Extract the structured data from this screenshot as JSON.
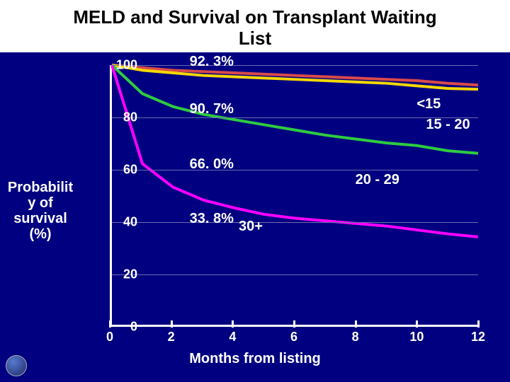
{
  "title_line1": "MELD and Survival on Transplant Waiting",
  "title_line2": "List",
  "ylabel_l1": "Probabilit",
  "ylabel_l2": "y of",
  "ylabel_l3": "survival",
  "ylabel_l4": "(%)",
  "xlabel": "Months from listing",
  "chart": {
    "type": "line",
    "background_color": "#000080",
    "grid_color": "#6a6ab0",
    "axis_color": "#ffffff",
    "text_color": "#ffffff",
    "title_bg": "#ffffff",
    "title_color": "#000000",
    "title_fontsize": 26,
    "label_fontsize": 20,
    "tick_fontsize": 18,
    "line_width": 4,
    "xlim": [
      0,
      12
    ],
    "ylim": [
      0,
      100
    ],
    "xticks": [
      0,
      2,
      4,
      6,
      8,
      10,
      12
    ],
    "yticks": [
      0,
      20,
      40,
      60,
      80,
      100
    ],
    "series": [
      {
        "name": "<15",
        "color": "#d94a4a",
        "x": [
          0,
          1,
          2,
          3,
          4,
          5,
          6,
          7,
          8,
          9,
          10,
          11,
          12
        ],
        "y": [
          100,
          99,
          98,
          97.5,
          97,
          96.5,
          96,
          95.5,
          95,
          94.5,
          94,
          93,
          92.3
        ],
        "end_label": "92. 3%"
      },
      {
        "name": "15 - 20",
        "color": "#f6d800",
        "x": [
          0,
          1,
          2,
          3,
          4,
          5,
          6,
          7,
          8,
          9,
          10,
          11,
          12
        ],
        "y": [
          100,
          98,
          97,
          96,
          95.5,
          95,
          94.5,
          94,
          93.5,
          93,
          92,
          91,
          90.7
        ],
        "end_label": "90. 7%"
      },
      {
        "name": "20 - 29",
        "color": "#2ecc40",
        "x": [
          0,
          1,
          2,
          3,
          4,
          5,
          6,
          7,
          8,
          9,
          10,
          11,
          12
        ],
        "y": [
          100,
          89,
          84,
          81,
          79,
          77,
          75,
          73,
          71.5,
          70,
          69,
          67,
          66.0
        ],
        "end_label": "66. 0%"
      },
      {
        "name": "30+",
        "color": "#ff00ff",
        "x": [
          0,
          1,
          2,
          3,
          4,
          5,
          6,
          7,
          8,
          9,
          10,
          11,
          12
        ],
        "y": [
          100,
          62,
          53,
          48,
          45,
          42.5,
          41,
          40,
          39,
          38,
          36.5,
          35,
          33.8
        ],
        "end_label": "33. 8%"
      }
    ],
    "data_labels": [
      {
        "text": "92. 3%",
        "x": 2.6,
        "y": 101
      },
      {
        "text": "90. 7%",
        "x": 2.6,
        "y": 83
      },
      {
        "text": "66. 0%",
        "x": 2.6,
        "y": 62
      },
      {
        "text": "33. 8%",
        "x": 2.6,
        "y": 41
      }
    ],
    "series_labels": [
      {
        "text": "<15",
        "color": "#ffffff",
        "x": 10.0,
        "y": 85
      },
      {
        "text": "15 - 20",
        "color": "#ffffff",
        "x": 10.3,
        "y": 77
      },
      {
        "text": "20 - 29",
        "color": "#ffffff",
        "x": 8.0,
        "y": 56
      },
      {
        "text": "30+",
        "color": "#ffffff",
        "x": 4.2,
        "y": 38
      }
    ]
  }
}
